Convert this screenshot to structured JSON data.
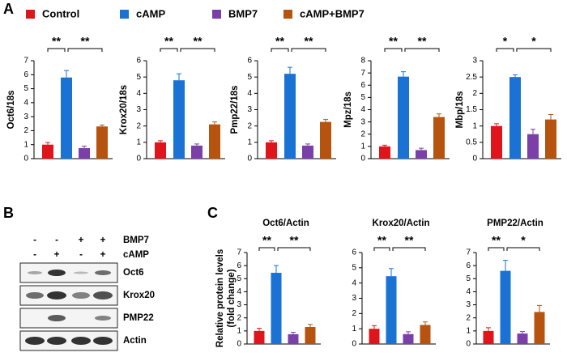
{
  "panel_labels": [
    "A",
    "B",
    "C"
  ],
  "legend": [
    {
      "name": "Control",
      "color": "#e0141b"
    },
    {
      "name": "cAMP",
      "color": "#1a73d4"
    },
    {
      "name": "BMP7",
      "color": "#7b3fa8"
    },
    {
      "name": "cAMP+BMP7",
      "color": "#b5530f"
    }
  ],
  "blot": {
    "conditions": [
      {
        "label": "BMP7",
        "signs": [
          "-",
          "-",
          "+",
          "+"
        ]
      },
      {
        "label": "cAMP",
        "signs": [
          "-",
          "+",
          "-",
          "+"
        ]
      }
    ],
    "bands": [
      "Oct6",
      "Krox20",
      "PMP22",
      "Actin"
    ]
  },
  "chart_data": [
    {
      "type": "bar",
      "ylabel": "Oct6/18s",
      "values": [
        1.0,
        5.8,
        0.75,
        2.3
      ],
      "errors": [
        0.15,
        0.5,
        0.15,
        0.1
      ],
      "ylim": [
        0,
        7
      ],
      "yticks": [
        0,
        1,
        2,
        3,
        4,
        5,
        6,
        7
      ],
      "comparisons": [
        {
          "label": "**",
          "between": [
            0,
            1
          ]
        },
        {
          "label": "**",
          "between": [
            1,
            3
          ]
        }
      ]
    },
    {
      "type": "bar",
      "ylabel": "Krox20/18s",
      "values": [
        1.0,
        4.8,
        0.8,
        2.1
      ],
      "errors": [
        0.1,
        0.4,
        0.1,
        0.15
      ],
      "ylim": [
        0,
        6
      ],
      "yticks": [
        0,
        1,
        2,
        3,
        4,
        5,
        6
      ],
      "comparisons": [
        {
          "label": "**",
          "between": [
            0,
            1
          ]
        },
        {
          "label": "**",
          "between": [
            1,
            3
          ]
        }
      ]
    },
    {
      "type": "bar",
      "ylabel": "Pmp22/18s",
      "values": [
        1.0,
        5.2,
        0.8,
        2.25
      ],
      "errors": [
        0.1,
        0.4,
        0.1,
        0.15
      ],
      "ylim": [
        0,
        6
      ],
      "yticks": [
        0,
        1,
        2,
        3,
        4,
        5,
        6
      ],
      "comparisons": [
        {
          "label": "**",
          "between": [
            0,
            1
          ]
        },
        {
          "label": "**",
          "between": [
            1,
            3
          ]
        }
      ]
    },
    {
      "type": "bar",
      "ylabel": "Mpz/18s",
      "values": [
        1.0,
        6.7,
        0.7,
        3.4
      ],
      "errors": [
        0.1,
        0.4,
        0.15,
        0.25
      ],
      "ylim": [
        0,
        8
      ],
      "yticks": [
        0,
        1,
        2,
        3,
        4,
        5,
        6,
        7,
        8
      ],
      "comparisons": [
        {
          "label": "**",
          "between": [
            0,
            1
          ]
        },
        {
          "label": "**",
          "between": [
            1,
            3
          ]
        }
      ]
    },
    {
      "type": "bar",
      "ylabel": "Mbp/18s",
      "values": [
        1.0,
        2.5,
        0.75,
        1.2
      ],
      "errors": [
        0.07,
        0.07,
        0.15,
        0.15
      ],
      "ylim": [
        0,
        3
      ],
      "yticks": [
        0,
        0.5,
        1,
        1.5,
        2,
        2.5,
        3
      ],
      "comparisons": [
        {
          "label": "*",
          "between": [
            0,
            1
          ]
        },
        {
          "label": "*",
          "between": [
            1,
            3
          ]
        }
      ]
    },
    {
      "type": "bar",
      "title": "Oct6/Actin",
      "ylabel_lines": [
        "Relative protein levels",
        "(fold change)"
      ],
      "values": [
        1.0,
        5.45,
        0.75,
        1.3
      ],
      "errors": [
        0.2,
        0.55,
        0.15,
        0.2
      ],
      "ylim": [
        0,
        7
      ],
      "yticks": [
        0,
        1,
        2,
        3,
        4,
        5,
        6,
        7
      ],
      "comparisons": [
        {
          "label": "**",
          "between": [
            0,
            1
          ]
        },
        {
          "label": "**",
          "between": [
            1,
            3
          ]
        }
      ]
    },
    {
      "type": "bar",
      "title": "Krox20/Actin",
      "values": [
        1.0,
        4.45,
        0.65,
        1.25
      ],
      "errors": [
        0.2,
        0.5,
        0.15,
        0.2
      ],
      "ylim": [
        0,
        6
      ],
      "yticks": [
        0,
        1,
        2,
        3,
        4,
        5,
        6
      ],
      "comparisons": [
        {
          "label": "**",
          "between": [
            0,
            1
          ]
        },
        {
          "label": "**",
          "between": [
            1,
            3
          ]
        }
      ]
    },
    {
      "type": "bar",
      "title": "PMP22/Actin",
      "values": [
        1.0,
        5.6,
        0.8,
        2.45
      ],
      "errors": [
        0.25,
        0.8,
        0.15,
        0.5
      ],
      "ylim": [
        0,
        7
      ],
      "yticks": [
        0,
        1,
        2,
        3,
        4,
        5,
        6,
        7
      ],
      "comparisons": [
        {
          "label": "**",
          "between": [
            0,
            1
          ]
        },
        {
          "label": "*",
          "between": [
            1,
            3
          ]
        }
      ]
    }
  ]
}
